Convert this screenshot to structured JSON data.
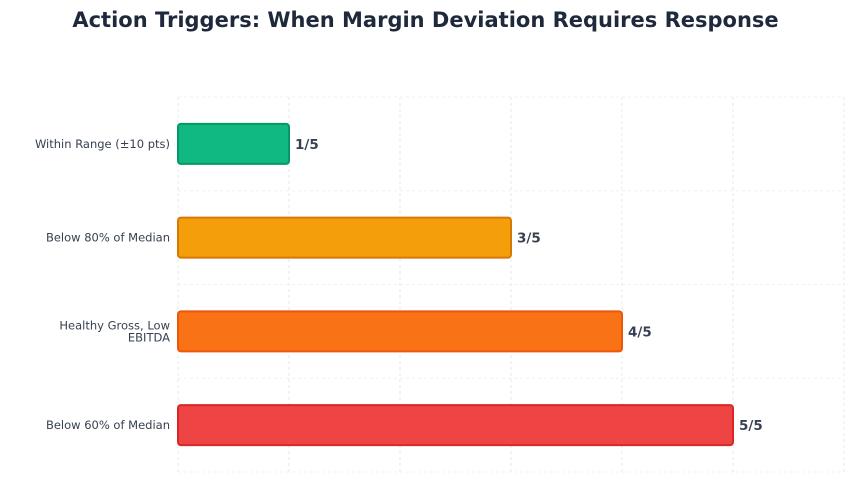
{
  "title": "Action Triggers: When Margin Deviation Requires Response",
  "chart_data": {
    "type": "bar",
    "orientation": "horizontal",
    "title": "Action Triggers: When Margin Deviation Requires Response",
    "xlabel": "",
    "ylabel": "",
    "xlim": [
      0,
      6
    ],
    "grid": true,
    "legend": "none",
    "categories": [
      "Within Range (±10 pts)",
      "Below 80% of Median",
      "Healthy Gross, Low EBITDA",
      "Below 60% of Median"
    ],
    "values": [
      1,
      3,
      4,
      5
    ],
    "value_labels": [
      "1/5",
      "3/5",
      "4/5",
      "5/5"
    ],
    "colors": [
      "#10b981",
      "#f59e0b",
      "#f97316",
      "#ef4444"
    ],
    "border_colors": [
      "#059669",
      "#d97706",
      "#ea580c",
      "#dc2626"
    ]
  }
}
